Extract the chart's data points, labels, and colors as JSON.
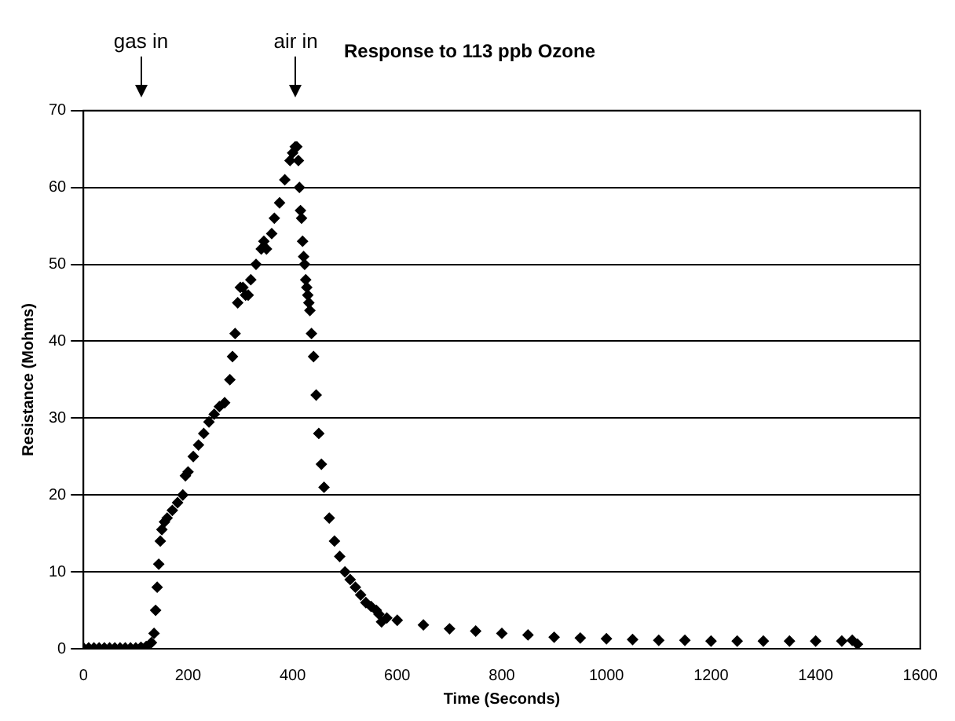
{
  "chart_data": {
    "type": "scatter",
    "title": "Response to 113 ppb Ozone",
    "xlabel": "Time (Seconds)",
    "ylabel": "Resistance (Mohms)",
    "annotations": [
      {
        "text": "gas in",
        "x": 110
      },
      {
        "text": "air in",
        "x": 406
      }
    ],
    "series": [
      {
        "color": "#000000",
        "x": [
          0,
          10,
          20,
          30,
          40,
          50,
          60,
          70,
          80,
          90,
          100,
          110,
          120,
          130,
          135,
          138,
          141,
          144,
          147,
          150,
          155,
          160,
          170,
          180,
          190,
          195,
          200,
          210,
          220,
          230,
          240,
          250,
          260,
          270,
          280,
          285,
          290,
          295,
          300,
          305,
          310,
          315,
          320,
          330,
          340,
          345,
          350,
          360,
          365,
          375,
          385,
          395,
          400,
          405,
          408,
          411,
          413,
          415,
          417,
          419,
          421,
          423,
          425,
          427,
          429,
          431,
          433,
          436,
          440,
          445,
          450,
          455,
          460,
          470,
          480,
          490,
          500,
          510,
          520,
          530,
          540,
          550,
          560,
          565,
          570,
          580,
          600,
          650,
          700,
          750,
          800,
          850,
          900,
          950,
          1000,
          1050,
          1100,
          1150,
          1200,
          1250,
          1300,
          1350,
          1400,
          1450,
          1470,
          1480
        ],
        "values": [
          0.1,
          0.1,
          0.1,
          0.1,
          0.1,
          0.1,
          0.1,
          0.1,
          0.1,
          0.1,
          0.1,
          0.2,
          0.3,
          0.8,
          2,
          5,
          8,
          11,
          14,
          15.5,
          16.5,
          17,
          18,
          19,
          20,
          22.5,
          23,
          25,
          26.5,
          28,
          29.5,
          30.5,
          31.5,
          32,
          35,
          38,
          41,
          45,
          47,
          47,
          46,
          46,
          48,
          50,
          52,
          53,
          52,
          54,
          56,
          58,
          61,
          63.5,
          64.5,
          65.3,
          65.3,
          63.5,
          60,
          57,
          56,
          53,
          51,
          50,
          48,
          47,
          46,
          45,
          44,
          41,
          38,
          33,
          28,
          24,
          21,
          17,
          14,
          12,
          10,
          9,
          8,
          7,
          6,
          5.5,
          5,
          4.5,
          3.5,
          4,
          3.7,
          3.1,
          2.6,
          2.3,
          2,
          1.8,
          1.5,
          1.4,
          1.3,
          1.2,
          1.1,
          1.1,
          1,
          1,
          1,
          1,
          1,
          1,
          1.1,
          0.6
        ]
      }
    ],
    "xlim": [
      0,
      1600
    ],
    "xticks": [
      0,
      200,
      400,
      600,
      800,
      1000,
      1200,
      1400,
      1600
    ],
    "ylim": [
      0,
      70
    ],
    "yticks": [
      0,
      10,
      20,
      30,
      40,
      50,
      60,
      70
    ],
    "grid": "y",
    "legend": false,
    "marker": "diamond"
  }
}
